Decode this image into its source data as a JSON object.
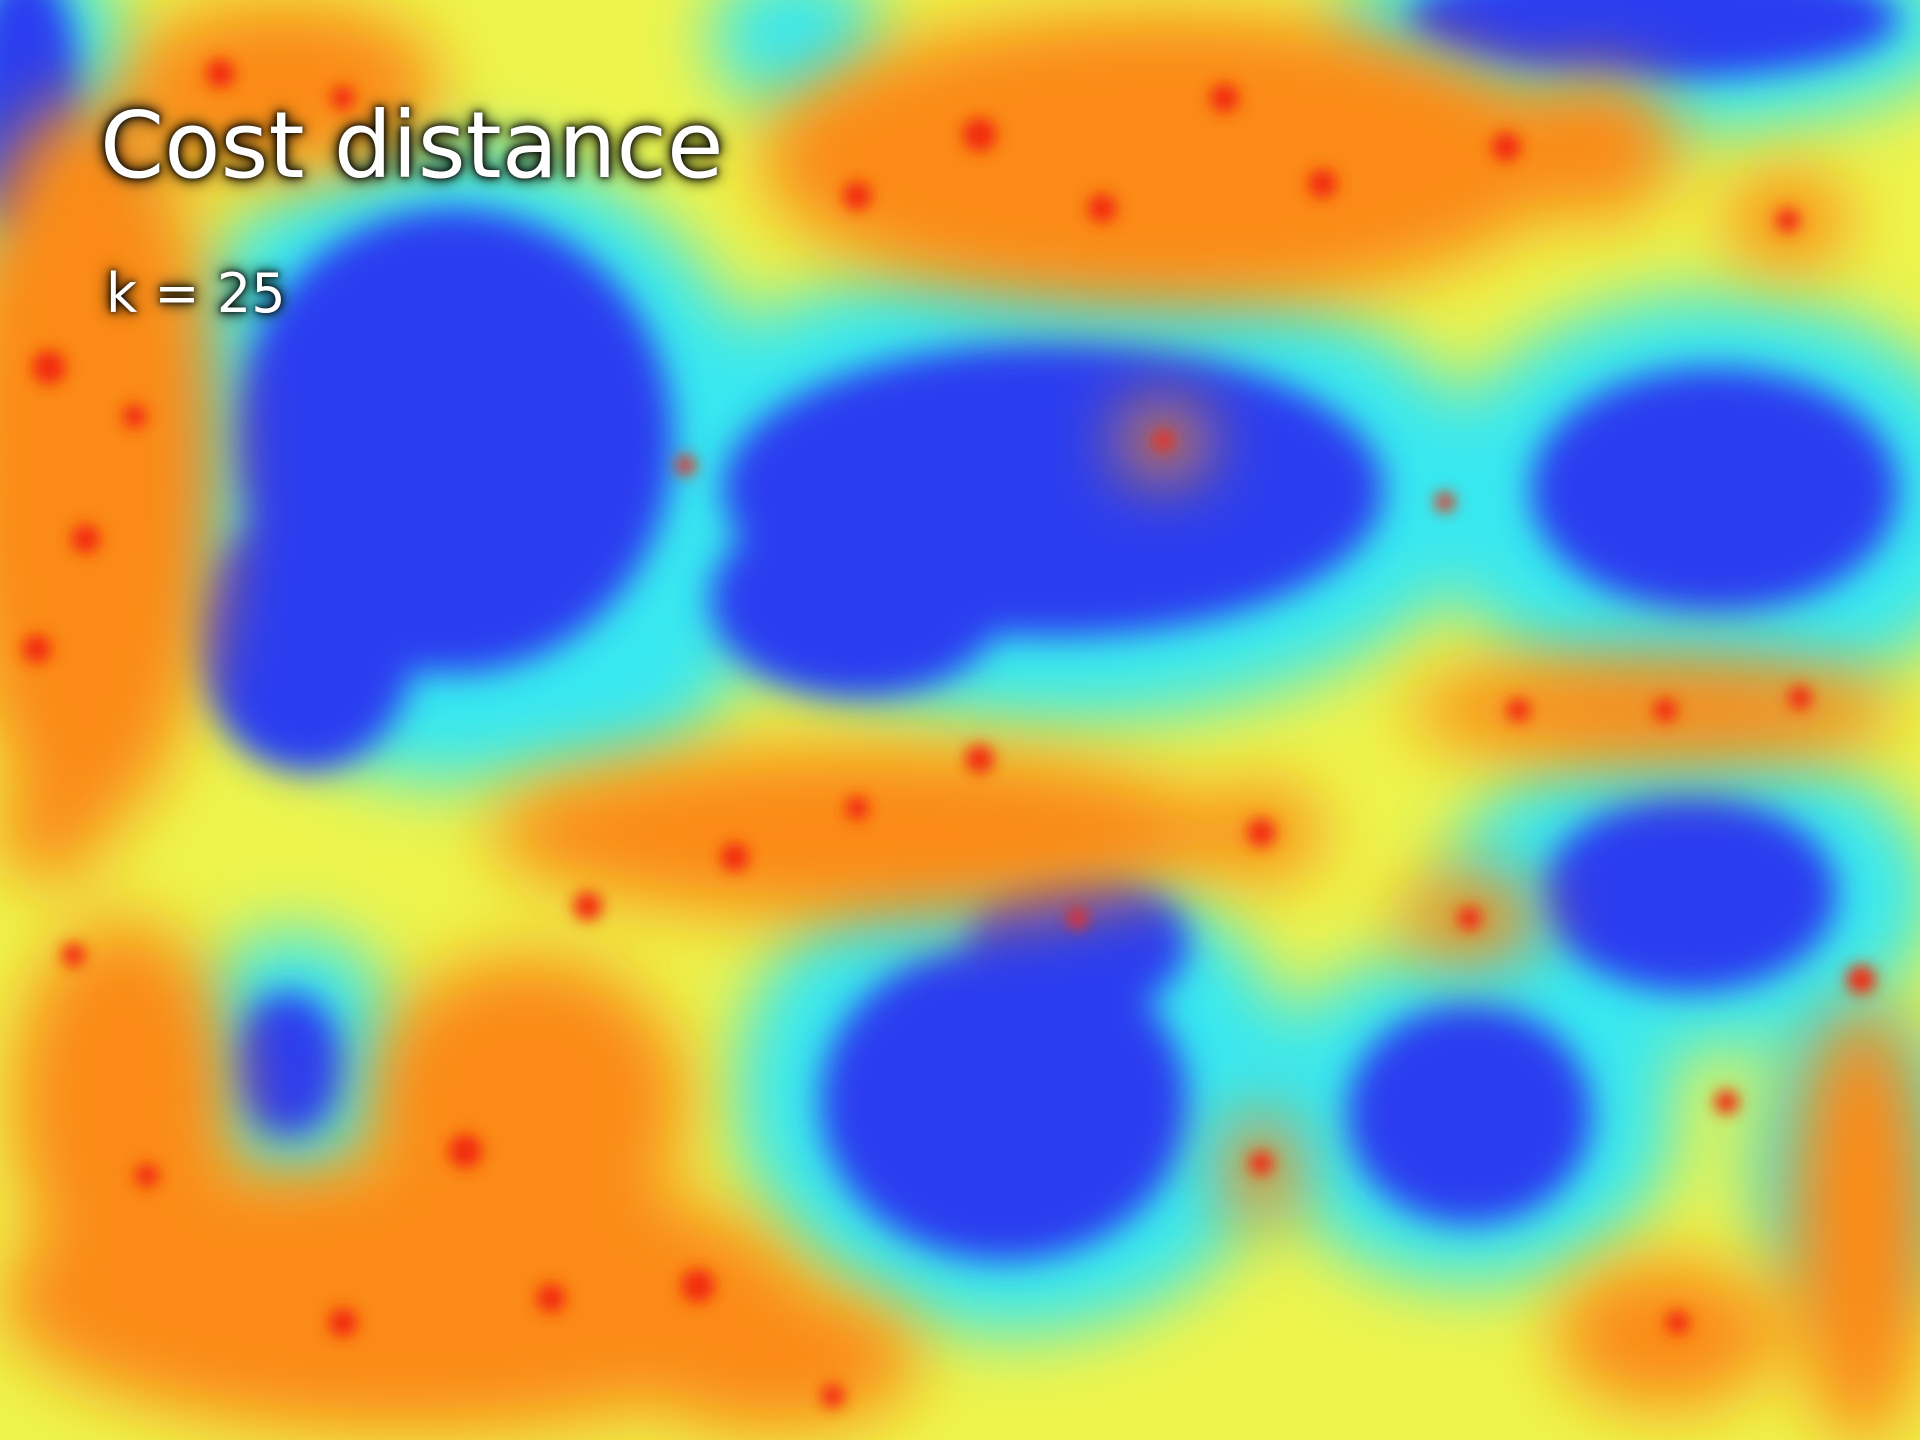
{
  "title": "Cost distance",
  "subtitle": "k = 25"
}
